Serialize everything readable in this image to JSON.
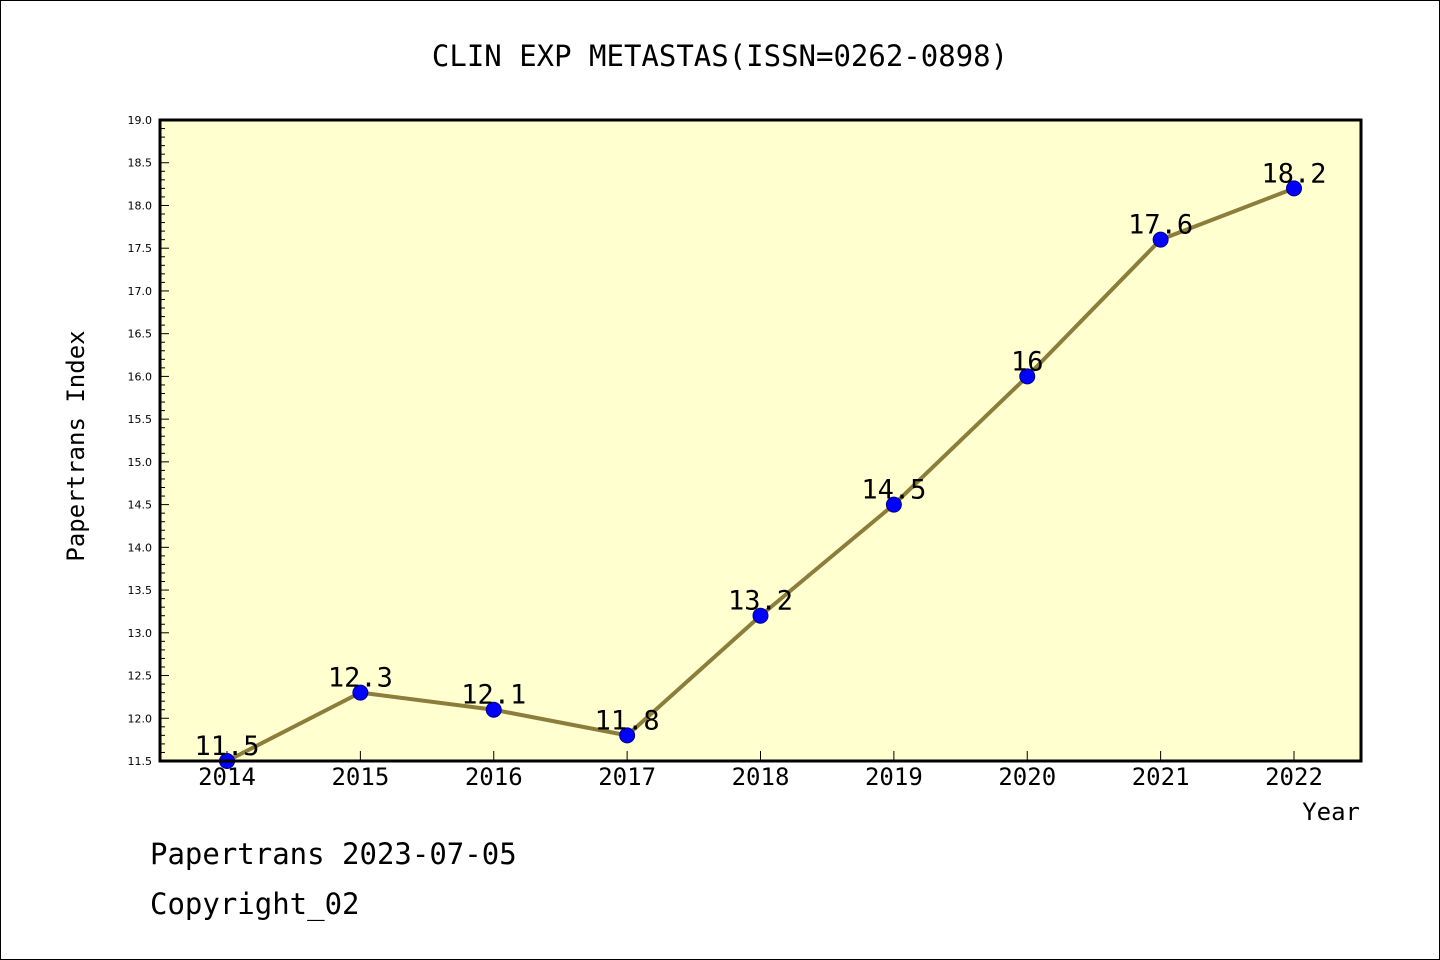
{
  "chart_data": {
    "type": "line",
    "title": "CLIN EXP METASTAS(ISSN=0262-0898)",
    "xlabel": "Year",
    "ylabel": "Papertrans Index",
    "categories": [
      "2014",
      "2015",
      "2016",
      "2017",
      "2018",
      "2019",
      "2020",
      "2021",
      "2022"
    ],
    "series": [
      {
        "values": [
          11.5,
          12.3,
          12.1,
          11.8,
          13.2,
          14.5,
          16,
          17.6,
          18.2
        ],
        "data_labels": [
          "11.5",
          "12.3",
          "12.1",
          "11.8",
          "13.2",
          "14.5",
          "16",
          "17.6",
          "18.2"
        ]
      }
    ],
    "ylim": [
      11.5,
      19.0
    ],
    "yticks": [
      11.5,
      12.0,
      12.5,
      13.0,
      13.5,
      14.0,
      14.5,
      15.0,
      15.5,
      16.0,
      16.5,
      17.0,
      17.5,
      18.0,
      18.5,
      19.0
    ],
    "ytick_labels": [
      "11.5",
      "12.0",
      "12.5",
      "13.0",
      "13.5",
      "14.0",
      "14.5",
      "15.0",
      "15.5",
      "16.0",
      "16.5",
      "17.0",
      "17.5",
      "18.0",
      "18.5",
      "19.0"
    ],
    "grid": false,
    "colors": {
      "plot_background": "#ffffd0",
      "line": "#8c7d3a",
      "marker": "#0000ff"
    }
  },
  "footer": {
    "line1": "Papertrans 2023-07-05",
    "line2": "Copyright_02"
  }
}
